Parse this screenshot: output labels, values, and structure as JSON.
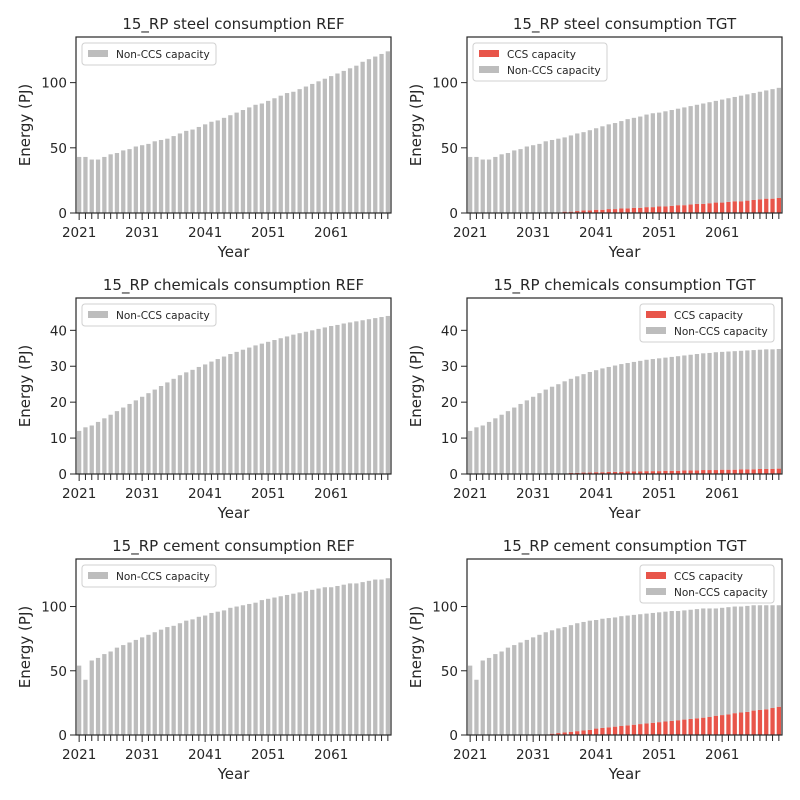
{
  "colors": {
    "ccs": "#e8554a",
    "non_ccs": "#bdbdbd",
    "axis": "#262626"
  },
  "chart_data": [
    {
      "type": "bar",
      "stacked": true,
      "title": "15_RP steel consumption REF",
      "xlabel": "Year",
      "ylabel": "Energy (PJ)",
      "ylim": [
        0,
        135
      ],
      "yticks": [
        0,
        50,
        100
      ],
      "x_start": 2021,
      "x_end": 2070,
      "xtick_labels": [
        "2021",
        "2031",
        "2041",
        "2051",
        "2061"
      ],
      "legend_position": "upper-left",
      "series": [
        {
          "name": "Non-CCS capacity",
          "key": "non_ccs",
          "values": [
            43,
            43,
            41,
            41,
            43,
            45,
            46,
            48,
            49,
            51,
            52,
            53,
            55,
            56,
            57,
            59,
            61,
            63,
            64,
            66,
            68,
            70,
            71,
            73,
            75,
            77,
            79,
            81,
            83,
            84,
            86,
            88,
            90,
            92,
            93,
            95,
            97,
            99,
            101,
            103,
            105,
            107,
            109,
            111,
            113,
            116,
            118,
            120,
            122,
            124
          ]
        }
      ]
    },
    {
      "type": "bar",
      "stacked": true,
      "title": "15_RP steel consumption TGT",
      "xlabel": "Year",
      "ylabel": "Energy (PJ)",
      "ylim": [
        0,
        135
      ],
      "yticks": [
        0,
        50,
        100
      ],
      "x_start": 2021,
      "x_end": 2070,
      "xtick_labels": [
        "2021",
        "2031",
        "2041",
        "2051",
        "2061"
      ],
      "legend_position": "upper-left",
      "series": [
        {
          "name": "CCS capacity",
          "key": "ccs",
          "values": [
            0,
            0,
            0,
            0,
            0,
            0,
            0,
            0,
            0,
            0,
            0,
            0,
            0,
            0,
            0.5,
            1,
            1,
            1.5,
            2,
            2,
            2.5,
            2.5,
            3,
            3,
            3.5,
            3.5,
            4,
            4,
            4.5,
            4.5,
            5,
            5,
            5.5,
            6,
            6,
            6.5,
            7,
            7,
            7.5,
            8,
            8,
            8.5,
            9,
            9,
            9.5,
            10,
            10.5,
            11,
            11,
            11.5
          ]
        },
        {
          "name": "Non-CCS capacity",
          "key": "non_ccs",
          "values": [
            43,
            43,
            41,
            41,
            43,
            45,
            46,
            48,
            49,
            51,
            52,
            53,
            55,
            56,
            56.5,
            57,
            58.5,
            59.5,
            60,
            61.5,
            62.5,
            64,
            65,
            66,
            67,
            68.5,
            69,
            70,
            71,
            72,
            72,
            73,
            73.5,
            74,
            75,
            75.5,
            76,
            77,
            77.5,
            78,
            79,
            79.5,
            80,
            81,
            81.5,
            82,
            82.5,
            83,
            84,
            84.5
          ]
        }
      ]
    },
    {
      "type": "bar",
      "stacked": true,
      "title": "15_RP chemicals consumption REF",
      "xlabel": "Year",
      "ylabel": "Energy (PJ)",
      "ylim": [
        0,
        49
      ],
      "yticks": [
        0,
        10,
        20,
        30,
        40
      ],
      "x_start": 2021,
      "x_end": 2070,
      "xtick_labels": [
        "2021",
        "2031",
        "2041",
        "2051",
        "2061"
      ],
      "legend_position": "upper-left",
      "series": [
        {
          "name": "Non-CCS capacity",
          "key": "non_ccs",
          "values": [
            12,
            13,
            13.5,
            14.5,
            15.5,
            16.5,
            17.5,
            18.5,
            19.5,
            20.5,
            21.5,
            22.5,
            23.5,
            24.5,
            25.5,
            26.5,
            27.5,
            28.3,
            29,
            29.8,
            30.5,
            31.3,
            32,
            32.7,
            33.4,
            34,
            34.6,
            35.2,
            35.8,
            36.3,
            36.8,
            37.3,
            37.8,
            38.3,
            38.8,
            39.2,
            39.6,
            40,
            40.4,
            40.8,
            41.2,
            41.5,
            41.9,
            42.2,
            42.5,
            42.8,
            43.1,
            43.4,
            43.7,
            44
          ]
        }
      ]
    },
    {
      "type": "bar",
      "stacked": true,
      "title": "15_RP chemicals consumption TGT",
      "xlabel": "Year",
      "ylabel": "Energy (PJ)",
      "ylim": [
        0,
        49
      ],
      "yticks": [
        0,
        10,
        20,
        30,
        40
      ],
      "x_start": 2021,
      "x_end": 2070,
      "xtick_labels": [
        "2021",
        "2031",
        "2041",
        "2051",
        "2061"
      ],
      "legend_position": "upper-right",
      "series": [
        {
          "name": "CCS capacity",
          "key": "ccs",
          "values": [
            0,
            0,
            0,
            0,
            0,
            0,
            0,
            0,
            0,
            0,
            0,
            0,
            0,
            0,
            0,
            0,
            0.3,
            0.3,
            0.4,
            0.4,
            0.5,
            0.5,
            0.6,
            0.6,
            0.6,
            0.7,
            0.7,
            0.7,
            0.8,
            0.8,
            0.8,
            0.9,
            0.9,
            0.9,
            1,
            1,
            1,
            1.1,
            1.1,
            1.1,
            1.2,
            1.2,
            1.2,
            1.3,
            1.3,
            1.3,
            1.4,
            1.4,
            1.4,
            1.5
          ]
        },
        {
          "name": "Non-CCS capacity",
          "key": "non_ccs",
          "values": [
            12,
            13,
            13.5,
            14.5,
            15.5,
            16.5,
            17.5,
            18.5,
            19.5,
            20.5,
            21.5,
            22.5,
            23.5,
            24.3,
            25,
            25.8,
            26.2,
            26.9,
            27.4,
            28,
            28.4,
            28.9,
            29.2,
            29.6,
            30,
            30.2,
            30.5,
            30.8,
            31,
            31.2,
            31.4,
            31.5,
            31.7,
            31.9,
            32,
            32.2,
            32.4,
            32.5,
            32.6,
            32.8,
            32.8,
            32.9,
            33,
            33,
            33.1,
            33.2,
            33.2,
            33.3,
            33.3,
            33.3
          ]
        }
      ]
    },
    {
      "type": "bar",
      "stacked": true,
      "title": "15_RP cement consumption REF",
      "xlabel": "Year",
      "ylabel": "Energy (PJ)",
      "ylim": [
        0,
        137
      ],
      "yticks": [
        0,
        50,
        100
      ],
      "x_start": 2021,
      "x_end": 2070,
      "xtick_labels": [
        "2021",
        "2031",
        "2041",
        "2051",
        "2061"
      ],
      "legend_position": "upper-left",
      "series": [
        {
          "name": "Non-CCS capacity",
          "key": "non_ccs",
          "values": [
            54,
            43,
            58,
            60,
            63,
            65,
            68,
            70,
            72,
            74,
            76,
            78,
            80,
            82,
            84,
            85,
            87,
            89,
            90,
            92,
            93,
            95,
            96,
            97,
            99,
            100,
            101,
            102,
            103,
            105,
            106,
            107,
            108,
            109,
            110,
            111,
            112,
            113,
            114,
            115,
            115,
            116,
            117,
            118,
            118,
            119,
            120,
            121,
            121,
            122
          ]
        }
      ]
    },
    {
      "type": "bar",
      "stacked": true,
      "title": "15_RP cement consumption TGT",
      "xlabel": "Year",
      "ylabel": "Energy (PJ)",
      "ylim": [
        0,
        137
      ],
      "yticks": [
        0,
        50,
        100
      ],
      "x_start": 2021,
      "x_end": 2070,
      "xtick_labels": [
        "2021",
        "2031",
        "2041",
        "2051",
        "2061"
      ],
      "legend_position": "upper-right",
      "series": [
        {
          "name": "CCS capacity",
          "key": "ccs",
          "values": [
            0,
            0,
            0,
            0,
            0,
            0,
            0,
            0,
            0,
            0,
            0,
            0,
            0.5,
            1,
            1.5,
            2,
            2.5,
            3,
            3.5,
            4,
            5,
            5.5,
            6,
            6.5,
            7,
            7.5,
            8,
            8.5,
            9,
            9.5,
            10,
            10.5,
            11,
            11.5,
            12,
            12.5,
            13,
            13.5,
            14,
            15,
            15.5,
            16,
            17,
            17.5,
            18,
            19,
            19.5,
            20,
            21,
            22
          ]
        },
        {
          "name": "Non-CCS capacity",
          "key": "non_ccs",
          "values": [
            54,
            43,
            58,
            60,
            63,
            65,
            68,
            70,
            72,
            74,
            76,
            78,
            79.5,
            80.5,
            81.5,
            82,
            83,
            84,
            84.5,
            85,
            84.5,
            85,
            85,
            85,
            85.5,
            85.5,
            85.5,
            85.5,
            85.5,
            85.5,
            85.5,
            85.5,
            85.5,
            85,
            85,
            85,
            85,
            85,
            84.5,
            83.5,
            83.5,
            83.5,
            83,
            82.5,
            82.5,
            82,
            81.5,
            81,
            80,
            79
          ]
        }
      ]
    }
  ]
}
